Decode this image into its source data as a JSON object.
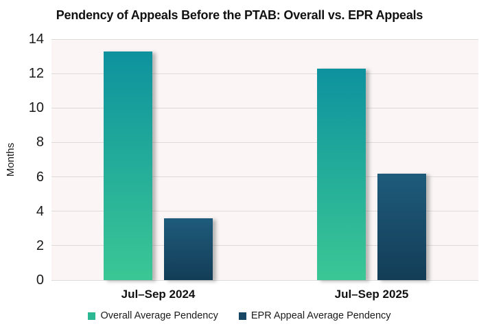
{
  "chart_data": {
    "type": "bar",
    "title": "Pendency of Appeals Before the PTAB: Overall vs. EPR Appeals",
    "categories": [
      "Jul–Sep 2024",
      "Jul–Sep 2025"
    ],
    "series": [
      {
        "name": "Overall Average Pendency",
        "values": [
          13.3,
          12.3
        ],
        "color_top": "#0d929e",
        "color_bottom": "#3bc795",
        "legend_color": "#2bb893"
      },
      {
        "name": "EPR Appeal Average Pendency",
        "values": [
          3.6,
          6.2
        ],
        "color_top": "#1e5b7b",
        "color_bottom": "#133d57",
        "legend_color": "#174764"
      }
    ],
    "xlabel": "",
    "ylabel": "Months",
    "ylim": [
      0,
      14
    ],
    "yticks": [
      0,
      2,
      4,
      6,
      8,
      10,
      12,
      14
    ],
    "grid": true,
    "legend_position": "bottom",
    "colors": {
      "plot_background": "#fbf6f5",
      "gridline": "#dedad9",
      "text": "#1a1a1a",
      "page_background": "#ffffff"
    }
  }
}
